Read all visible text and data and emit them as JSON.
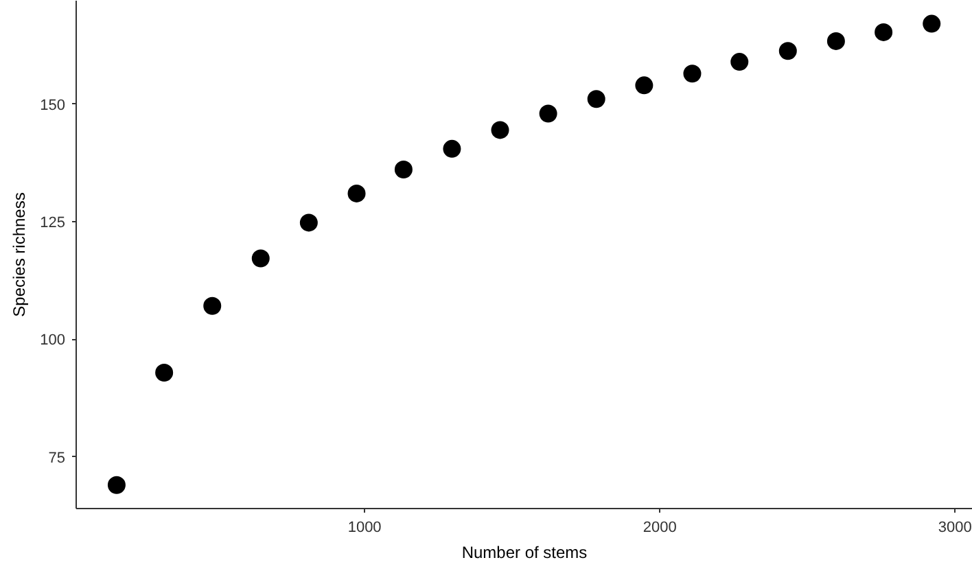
{
  "chart_data": {
    "type": "scatter",
    "xlabel": "Number of stems",
    "ylabel": "Species richness",
    "x": [
      160,
      321,
      484,
      648,
      811,
      973,
      1132,
      1296,
      1459,
      1622,
      1785,
      1947,
      2110,
      2270,
      2434,
      2597,
      2758,
      2921
    ],
    "series": [
      {
        "color": "#000000",
        "values": [
          69.0,
          92.9,
          107.1,
          117.2,
          124.8,
          131.0,
          136.1,
          140.5,
          144.5,
          148.0,
          151.1,
          154.0,
          156.5,
          159.0,
          161.3,
          163.4,
          165.3,
          167.1
        ]
      }
    ],
    "xlim": [
      23,
      3060
    ],
    "ylim": [
      64,
      172
    ],
    "xticks": [
      1000,
      2000,
      3000
    ],
    "yticks": [
      75,
      100,
      125,
      150
    ],
    "grid": false,
    "marker": "circle"
  }
}
